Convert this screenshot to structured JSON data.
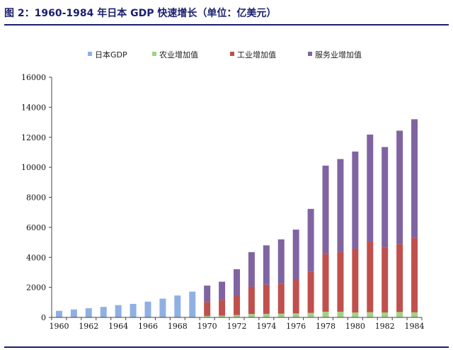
{
  "title": "图 2：1960-1984 年日本 GDP 快速增长（单位：亿美元）",
  "colors": {
    "gdp": "#8fb0e3",
    "agriculture": "#a3d184",
    "industry": "#c0504d",
    "services": "#8064a2",
    "title": "#1a1f6e"
  },
  "chart_data": {
    "type": "bar",
    "title": "",
    "xlabel": "",
    "ylabel": "",
    "ylim": [
      0,
      16000
    ],
    "yticks": [
      0,
      2000,
      4000,
      6000,
      8000,
      10000,
      12000,
      14000,
      16000
    ],
    "xtick_labels": [
      "1960",
      "1962",
      "1964",
      "1966",
      "1968",
      "1970",
      "1972",
      "1974",
      "1976",
      "1978",
      "1980",
      "1982",
      "1984"
    ],
    "categories": [
      "1960",
      "1961",
      "1962",
      "1963",
      "1964",
      "1965",
      "1966",
      "1967",
      "1968",
      "1969",
      "1970",
      "1971",
      "1972",
      "1973",
      "1974",
      "1975",
      "1976",
      "1977",
      "1978",
      "1979",
      "1980",
      "1981",
      "1982",
      "1983",
      "1984"
    ],
    "legend_position": "top",
    "grid": false,
    "series": [
      {
        "name": "日本GDP",
        "color_key": "gdp",
        "values": [
          440,
          530,
          610,
          700,
          820,
          900,
          1050,
          1250,
          1460,
          1720,
          null,
          null,
          null,
          null,
          null,
          null,
          null,
          null,
          null,
          null,
          null,
          null,
          null,
          null,
          null
        ]
      },
      {
        "name": "农业增加值",
        "color_key": "agriculture",
        "stack": "sector",
        "values": [
          null,
          null,
          null,
          null,
          null,
          null,
          null,
          null,
          null,
          null,
          100,
          120,
          160,
          230,
          240,
          250,
          270,
          300,
          380,
          380,
          330,
          350,
          330,
          360,
          340
        ]
      },
      {
        "name": "工业增加值",
        "color_key": "industry",
        "stack": "sector",
        "values": [
          null,
          null,
          null,
          null,
          null,
          null,
          null,
          null,
          null,
          null,
          920,
          1040,
          1280,
          1820,
          1940,
          2000,
          2230,
          2730,
          3850,
          3990,
          4250,
          4700,
          4300,
          4540,
          4960
        ]
      },
      {
        "name": "服务业增加值",
        "color_key": "services",
        "stack": "sector",
        "values": [
          null,
          null,
          null,
          null,
          null,
          null,
          null,
          null,
          null,
          null,
          1100,
          1220,
          1770,
          2300,
          2620,
          2950,
          3350,
          4200,
          5880,
          6180,
          6470,
          7130,
          6720,
          7540,
          7900
        ]
      }
    ]
  }
}
